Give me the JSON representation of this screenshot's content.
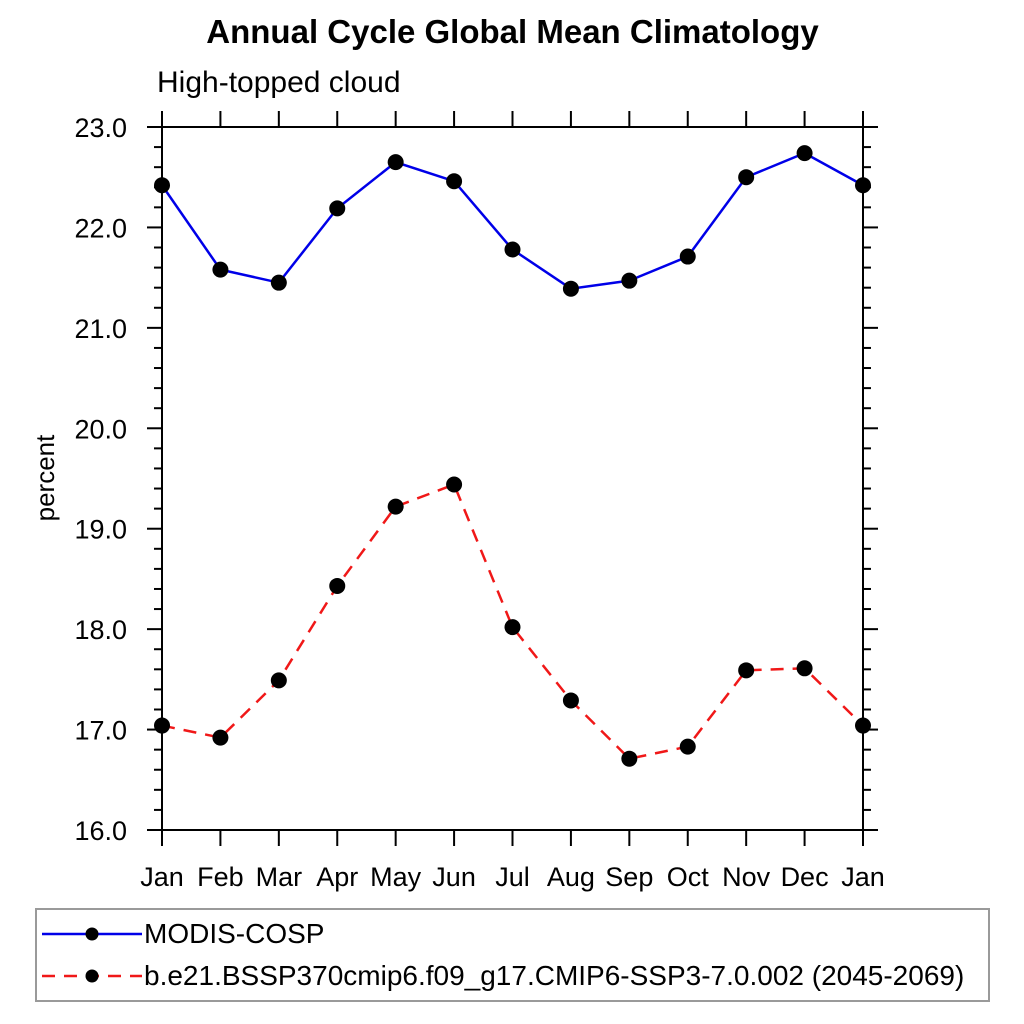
{
  "chart_data": {
    "type": "line",
    "title": "Annual Cycle Global Mean Climatology",
    "subtitle": "High-topped cloud",
    "ylabel": "percent",
    "xlabel": "",
    "x_categories": [
      "Jan",
      "Feb",
      "Mar",
      "Apr",
      "May",
      "Jun",
      "Jul",
      "Aug",
      "Sep",
      "Oct",
      "Nov",
      "Dec",
      "Jan"
    ],
    "ylim": [
      16.0,
      23.0
    ],
    "y_major_step": 1.0,
    "y_minor_step": 0.2,
    "y_tick_labels": [
      "16.0",
      "17.0",
      "18.0",
      "19.0",
      "20.0",
      "21.0",
      "22.0",
      "23.0"
    ],
    "grid": false,
    "legend_position": "bottom-box",
    "legend_border_color": "#9a9a9a",
    "frame_color": "#000000",
    "series": [
      {
        "name": "MODIS-COSP",
        "color": "#0000e8",
        "line_style": "solid",
        "marker": "filled-circle",
        "marker_color": "#000000",
        "values": [
          22.42,
          21.58,
          21.45,
          22.19,
          22.65,
          22.46,
          21.78,
          21.39,
          21.47,
          21.71,
          22.5,
          22.74,
          22.42
        ]
      },
      {
        "name": "b.e21.BSSP370cmip6.f09_g17.CMIP6-SSP3-7.0.002 (2045-2069)",
        "color": "#f01818",
        "line_style": "dashed",
        "marker": "filled-circle",
        "marker_color": "#000000",
        "values": [
          17.04,
          16.92,
          17.49,
          18.43,
          19.22,
          19.44,
          18.02,
          17.29,
          16.71,
          16.83,
          17.59,
          17.61,
          17.04
        ]
      }
    ]
  }
}
